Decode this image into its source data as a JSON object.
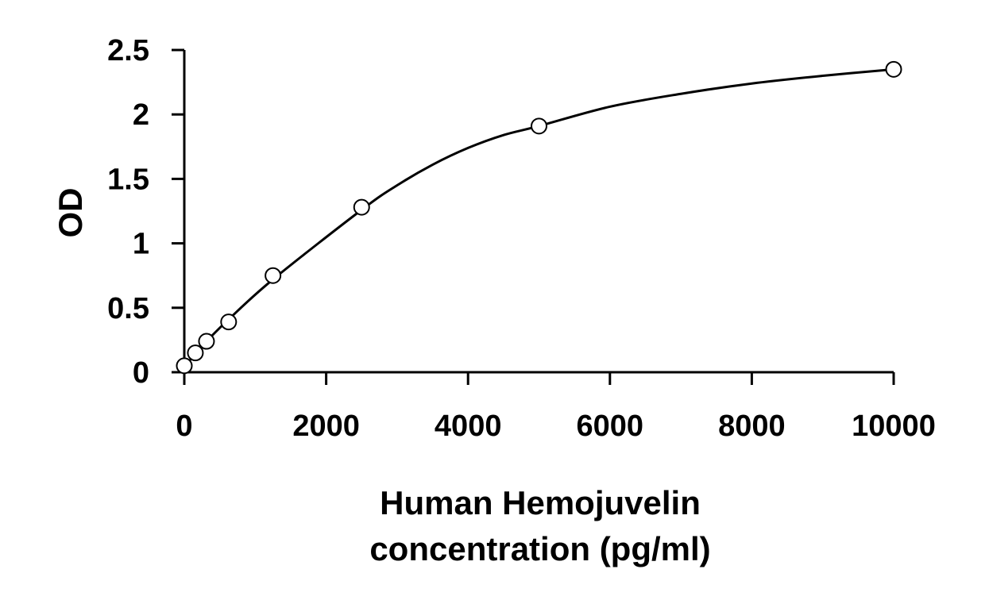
{
  "chart_data": {
    "type": "scatter",
    "title": "",
    "xlabel_lines": [
      "Human Hemojuvelin",
      "concentration (pg/ml)"
    ],
    "ylabel": "OD",
    "xlim": [
      0,
      10000
    ],
    "ylim": [
      0,
      2.5
    ],
    "x_ticks": [
      0,
      2000,
      4000,
      6000,
      8000,
      10000
    ],
    "x_tick_labels": [
      "0",
      "2000",
      "4000",
      "6000",
      "8000",
      "10000"
    ],
    "y_ticks": [
      0,
      0.5,
      1,
      1.5,
      2,
      2.5
    ],
    "y_tick_labels": [
      "0",
      "0.5",
      "1",
      "1.5",
      "2",
      "2.5"
    ],
    "grid": false,
    "legend": "none",
    "series": [
      {
        "marker": "open-circle",
        "x": [
          0,
          156,
          313,
          625,
          1250,
          2500,
          5000,
          10000
        ],
        "y": [
          0.05,
          0.15,
          0.24,
          0.39,
          0.75,
          1.28,
          1.91,
          2.35
        ]
      }
    ],
    "fit_curve": {
      "style": "smooth-line",
      "x": [
        0,
        156,
        313,
        625,
        1250,
        2500,
        3000,
        3500,
        4000,
        4500,
        5000,
        6000,
        7000,
        8000,
        9000,
        10000
      ],
      "y": [
        0.03,
        0.15,
        0.24,
        0.41,
        0.72,
        1.26,
        1.45,
        1.61,
        1.74,
        1.84,
        1.91,
        2.06,
        2.16,
        2.24,
        2.3,
        2.35
      ]
    },
    "colors": {
      "axis": "#000000",
      "marker_edge": "#000000",
      "marker_fill": "#ffffff",
      "curve": "#000000",
      "background": "#ffffff"
    }
  }
}
